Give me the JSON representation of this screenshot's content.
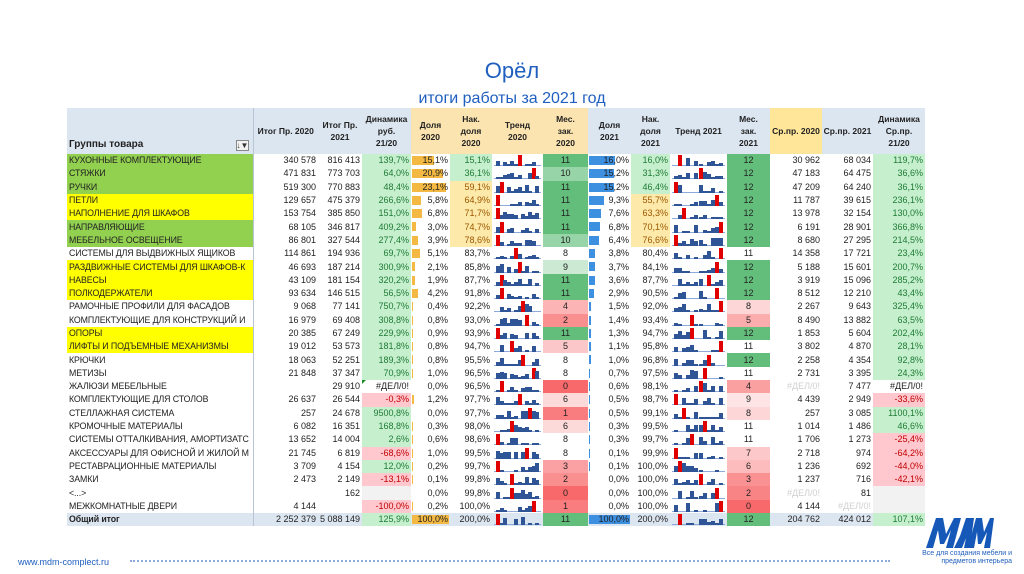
{
  "title": "Орёл",
  "subtitle": "итоги работы за 2021 год",
  "headers": {
    "group": "Группы товара",
    "total2020": "Итог Пр. 2020",
    "total2021": "Итог Пр. 2021",
    "dyn_top": "Динамика",
    "dyn_rub": "руб.",
    "dyn_2120": "21/20",
    "share2020": [
      "Доля",
      "2020"
    ],
    "cum2020": [
      "Нак.",
      "доля",
      "2020"
    ],
    "trend2020": [
      "Тренд",
      "2020"
    ],
    "mes2020": [
      "Мес.",
      "зак.",
      "2020"
    ],
    "share2021": [
      "Доля",
      "2021"
    ],
    "cum2021": [
      "Нак.",
      "доля",
      "2021"
    ],
    "trend2021": "Тренд 2021",
    "mes2021": [
      "Мес.",
      "зак.",
      "2021"
    ],
    "avg2020": "Ср.пр. 2020",
    "avg2021": "Ср.пр. 2021",
    "dyn_avg": [
      "Динамика",
      "Ср.пр.",
      "21/20"
    ]
  },
  "colors": {
    "green_name": "#92d050",
    "yellow_name": "#ffff00",
    "pos_bg": "#c6efce",
    "pos_fg": "#1e7b34",
    "neg_bg": "#ffc7ce",
    "neg_fg": "#c00000",
    "bar2020": "#f4b942",
    "bar2021": "#3d8fe0"
  },
  "rows": [
    [
      "КУХОННЫЕ КОМПЛЕКТУЮЩИЕ",
      "340 578",
      "816 413",
      "139,7%",
      "15,1%",
      "15,1%",
      11,
      "16,0%",
      "16,0%",
      12,
      "30 962",
      "68 034",
      "119,7%",
      "g"
    ],
    [
      "СТЯЖКИ",
      "471 831",
      "773 703",
      "64,0%",
      "20,9%",
      "36,1%",
      10,
      "15,2%",
      "31,3%",
      12,
      "47 183",
      "64 475",
      "36,6%",
      "g"
    ],
    [
      "РУЧКИ",
      "519 300",
      "770 883",
      "48,4%",
      "23,1%",
      "59,1%",
      11,
      "15,2%",
      "46,4%",
      12,
      "47 209",
      "64 240",
      "36,1%",
      "g"
    ],
    [
      "ПЕТЛИ",
      "129 657",
      "475 379",
      "266,6%",
      "5,8%",
      "64,9%",
      11,
      "9,3%",
      "55,7%",
      12,
      "11 787",
      "39 615",
      "236,1%",
      "y"
    ],
    [
      "НАПОЛНЕНИЕ ДЛЯ ШКАФОВ",
      "153 754",
      "385 850",
      "151,0%",
      "6,8%",
      "71,7%",
      11,
      "7,6%",
      "63,3%",
      12,
      "13 978",
      "32 154",
      "130,0%",
      "y"
    ],
    [
      "НАПРАВЛЯЮЩИЕ",
      "68 105",
      "346 817",
      "409,2%",
      "3,0%",
      "74,7%",
      11,
      "6,8%",
      "70,1%",
      12,
      "6 191",
      "28 901",
      "366,8%",
      "g"
    ],
    [
      "МЕБЕЛЬНОЕ ОСВЕЩЕНИЕ",
      "86 801",
      "327 544",
      "277,4%",
      "3,9%",
      "78,6%",
      10,
      "6,4%",
      "76,6%",
      12,
      "8 680",
      "27 295",
      "214,5%",
      "g"
    ],
    [
      "СИСТЕМЫ ДЛЯ ВЫДВИЖНЫХ ЯЩИКОВ",
      "114 861",
      "194 936",
      "69,7%",
      "5,1%",
      "83,7%",
      8,
      "3,8%",
      "80,4%",
      11,
      "14 358",
      "17 721",
      "23,4%",
      ""
    ],
    [
      "РАЗДВИЖНЫЕ СИСТЕМЫ ДЛЯ ШКАФОВ-К",
      "46 693",
      "187 214",
      "300,9%",
      "2,1%",
      "85,8%",
      9,
      "3,7%",
      "84,1%",
      12,
      "5 188",
      "15 601",
      "200,7%",
      "y"
    ],
    [
      "НАВЕСЫ",
      "43 109",
      "181 154",
      "320,2%",
      "1,9%",
      "87,7%",
      11,
      "3,6%",
      "87,7%",
      12,
      "3 919",
      "15 096",
      "285,2%",
      "y"
    ],
    [
      "ПОЛКОДЕРЖАТЕЛИ",
      "93 634",
      "146 515",
      "56,5%",
      "4,2%",
      "91,8%",
      11,
      "2,9%",
      "90,5%",
      12,
      "8 512",
      "12 210",
      "43,4%",
      "y"
    ],
    [
      "РАМОЧНЫЕ ПРОФИЛИ ДЛЯ ФАСАДОВ",
      "9 068",
      "77 141",
      "750,7%",
      "0,4%",
      "92,2%",
      4,
      "1,5%",
      "92,0%",
      8,
      "2 267",
      "9 643",
      "325,4%",
      ""
    ],
    [
      "КОМПЛЕКТУЮЩИЕ ДЛЯ КОНСТРУКЦИЙ И",
      "16 979",
      "69 408",
      "308,8%",
      "0,8%",
      "93,0%",
      2,
      "1,4%",
      "93,4%",
      5,
      "8 490",
      "13 882",
      "63,5%",
      ""
    ],
    [
      "ОПОРЫ",
      "20 385",
      "67 249",
      "229,9%",
      "0,9%",
      "93,9%",
      11,
      "1,3%",
      "94,7%",
      12,
      "1 853",
      "5 604",
      "202,4%",
      "y"
    ],
    [
      "ЛИФТЫ И ПОДЪЕМНЫЕ МЕХАНИЗМЫ",
      "19 012",
      "53 573",
      "181,8%",
      "0,8%",
      "94,7%",
      5,
      "1,1%",
      "95,8%",
      11,
      "3 802",
      "4 870",
      "28,1%",
      "y"
    ],
    [
      "КРЮЧКИ",
      "18 063",
      "52 251",
      "189,3%",
      "0,8%",
      "95,5%",
      8,
      "1,0%",
      "96,8%",
      12,
      "2 258",
      "4 354",
      "92,8%",
      ""
    ],
    [
      "МЕТИЗЫ",
      "21 848",
      "37 347",
      "70,9%",
      "1,0%",
      "96,5%",
      8,
      "0,7%",
      "97,5%",
      11,
      "2 731",
      "3 395",
      "24,3%",
      ""
    ],
    [
      "ЖАЛЮЗИ МЕБЕЛЬНЫЕ",
      "",
      "29 910",
      "#ДЕЛ/0!",
      "0,0%",
      "96,5%",
      0,
      "0,6%",
      "98,1%",
      4,
      "#ДЕЛ/0!",
      "7 477",
      "#ДЕЛ/0!",
      ""
    ],
    [
      "КОМПЛЕКТУЮЩИЕ ДЛЯ СТОЛОВ",
      "26 637",
      "26 544",
      "-0,3%",
      "1,2%",
      "97,7%",
      6,
      "0,5%",
      "98,7%",
      9,
      "4 439",
      "2 949",
      "-33,6%",
      ""
    ],
    [
      "СТЕЛЛАЖНАЯ СИСТЕМА",
      "257",
      "24 678",
      "9500,8%",
      "0,0%",
      "97,7%",
      1,
      "0,5%",
      "99,1%",
      8,
      "257",
      "3 085",
      "1100,1%",
      ""
    ],
    [
      "КРОМОЧНЫЕ МАТЕРИАЛЫ",
      "6 082",
      "16 351",
      "168,8%",
      "0,3%",
      "98,0%",
      6,
      "0,3%",
      "99,5%",
      11,
      "1 014",
      "1 486",
      "46,6%",
      ""
    ],
    [
      "СИСТЕМЫ ОТТАЛКИВАНИЯ, АМОРТИЗАТС",
      "13 652",
      "14 004",
      "2,6%",
      "0,6%",
      "98,6%",
      8,
      "0,3%",
      "99,7%",
      11,
      "1 706",
      "1 273",
      "-25,4%",
      ""
    ],
    [
      "АКСЕССУАРЫ ДЛЯ ОФИСНОЙ И ЖИЛОЙ М",
      "21 745",
      "6 819",
      "-68,6%",
      "1,0%",
      "99,5%",
      8,
      "0,1%",
      "99,9%",
      7,
      "2 718",
      "974",
      "-64,2%",
      ""
    ],
    [
      "РЕСТАВРАЦИОННЫЕ МАТЕРИАЛЫ",
      "3 709",
      "4 154",
      "12,0%",
      "0,2%",
      "99,7%",
      3,
      "0,1%",
      "100,0%",
      6,
      "1 236",
      "692",
      "-44,0%",
      ""
    ],
    [
      "ЗАМКИ",
      "2 473",
      "2 149",
      "-13,1%",
      "0,1%",
      "99,8%",
      2,
      "0,0%",
      "100,0%",
      3,
      "1 237",
      "716",
      "-42,1%",
      ""
    ],
    [
      "<...>",
      "",
      "162",
      "",
      "0,0%",
      "99,8%",
      0,
      "0,0%",
      "100,0%",
      2,
      "#ДЕЛ/0!",
      "81",
      "",
      ""
    ],
    [
      "МЕЖКОМНАТНЫЕ ДВЕРИ",
      "4 144",
      "",
      "-100,0%",
      "0,2%",
      "100,0%",
      1,
      "0,0%",
      "100,0%",
      0,
      "4 144",
      "#ДЕЛ/0!",
      "",
      ""
    ]
  ],
  "total": [
    "Общий итог",
    "2 252 379",
    "5 088 149",
    "125,9%",
    "100,0%",
    "200,0%",
    11,
    "100,0%",
    "200,0%",
    12,
    "204 762",
    "424 012",
    "107,1%",
    ""
  ],
  "footer": {
    "url": "www.mdm-complect.ru",
    "logo": "MДM",
    "tagline": "Все для создания мебели и предметов интерьера"
  }
}
